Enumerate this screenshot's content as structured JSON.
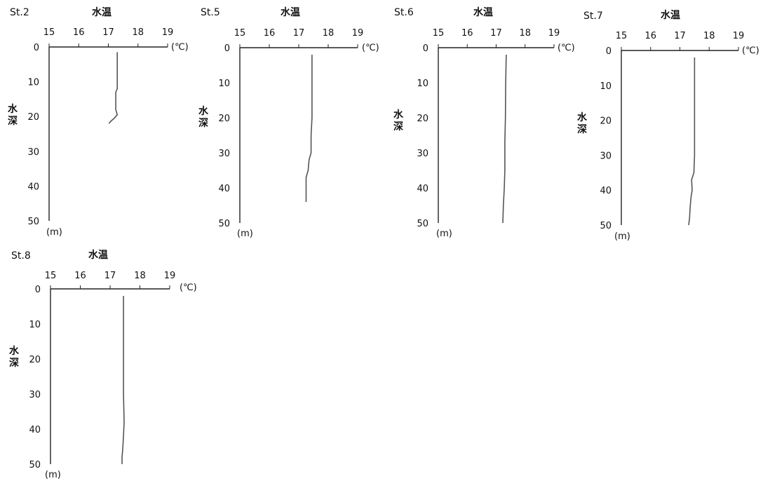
{
  "chart_data": [
    {
      "type": "line",
      "title": "St.2",
      "xlabel": "水温",
      "x_unit": "(℃)",
      "ylabel": "水深",
      "y_unit": "(m)",
      "xlim": [
        15,
        19
      ],
      "ylim": [
        0,
        50
      ],
      "y_inverted": true,
      "x_ticks": [
        "15",
        "16",
        "17",
        "18",
        "19"
      ],
      "y_ticks": [
        "0",
        "10",
        "20",
        "30",
        "40",
        "50"
      ],
      "grid": false,
      "series": [
        {
          "points": [
            [
              17.3,
              1.5
            ],
            [
              17.3,
              6
            ],
            [
              17.3,
              12
            ],
            [
              17.25,
              13
            ],
            [
              17.25,
              18
            ],
            [
              17.3,
              19.5
            ],
            [
              17.2,
              20.5
            ],
            [
              17.1,
              21.2
            ],
            [
              17.02,
              22
            ]
          ]
        }
      ]
    },
    {
      "type": "line",
      "title": "St.5",
      "xlabel": "水温",
      "x_unit": "(℃)",
      "ylabel": "水深",
      "y_unit": "(m)",
      "xlim": [
        15,
        19
      ],
      "ylim": [
        0,
        50
      ],
      "y_inverted": true,
      "x_ticks": [
        "15",
        "16",
        "17",
        "18",
        "19"
      ],
      "y_ticks": [
        "0",
        "10",
        "20",
        "30",
        "40",
        "50"
      ],
      "grid": false,
      "series": [
        {
          "points": [
            [
              17.45,
              2
            ],
            [
              17.45,
              10
            ],
            [
              17.45,
              20
            ],
            [
              17.42,
              25
            ],
            [
              17.42,
              30
            ],
            [
              17.35,
              32
            ],
            [
              17.32,
              35
            ],
            [
              17.25,
              37
            ],
            [
              17.25,
              40
            ],
            [
              17.25,
              44
            ]
          ]
        }
      ]
    },
    {
      "type": "line",
      "title": "St.6",
      "xlabel": "水温",
      "x_unit": "(℃)",
      "ylabel": "水深",
      "y_unit": "(m)",
      "xlim": [
        15,
        19
      ],
      "ylim": [
        0,
        50
      ],
      "y_inverted": true,
      "x_ticks": [
        "15",
        "16",
        "17",
        "18",
        "19"
      ],
      "y_ticks": [
        "0",
        "10",
        "20",
        "30",
        "40",
        "50"
      ],
      "grid": false,
      "series": [
        {
          "points": [
            [
              17.35,
              2
            ],
            [
              17.33,
              10
            ],
            [
              17.32,
              20
            ],
            [
              17.3,
              27
            ],
            [
              17.3,
              35
            ],
            [
              17.28,
              40
            ],
            [
              17.25,
              45
            ],
            [
              17.23,
              50
            ]
          ]
        }
      ]
    },
    {
      "type": "line",
      "title": "St.7",
      "xlabel": "水温",
      "x_unit": "(℃)",
      "ylabel": "水深",
      "y_unit": "(m)",
      "xlim": [
        15,
        19
      ],
      "ylim": [
        0,
        50
      ],
      "y_inverted": true,
      "x_ticks": [
        "15",
        "16",
        "17",
        "18",
        "19"
      ],
      "y_ticks": [
        "0",
        "10",
        "20",
        "30",
        "40",
        "50"
      ],
      "grid": false,
      "series": [
        {
          "points": [
            [
              17.5,
              2
            ],
            [
              17.5,
              10
            ],
            [
              17.5,
              20
            ],
            [
              17.5,
              30
            ],
            [
              17.48,
              35
            ],
            [
              17.4,
              37
            ],
            [
              17.42,
              40
            ],
            [
              17.38,
              42
            ],
            [
              17.35,
              45
            ],
            [
              17.33,
              48
            ],
            [
              17.3,
              50
            ]
          ]
        }
      ]
    },
    {
      "type": "line",
      "title": "St.8",
      "xlabel": "水温",
      "x_unit": "(℃)",
      "ylabel": "水深",
      "y_unit": "(m)",
      "xlim": [
        15,
        19
      ],
      "ylim": [
        0,
        50
      ],
      "y_inverted": true,
      "x_ticks": [
        "15",
        "16",
        "17",
        "18",
        "19"
      ],
      "y_ticks": [
        "0",
        "10",
        "20",
        "30",
        "40",
        "50"
      ],
      "grid": false,
      "series": [
        {
          "points": [
            [
              17.45,
              2
            ],
            [
              17.45,
              10
            ],
            [
              17.45,
              20
            ],
            [
              17.45,
              30
            ],
            [
              17.47,
              38
            ],
            [
              17.45,
              42
            ],
            [
              17.42,
              46
            ],
            [
              17.4,
              48
            ],
            [
              17.4,
              50
            ]
          ]
        }
      ]
    }
  ]
}
